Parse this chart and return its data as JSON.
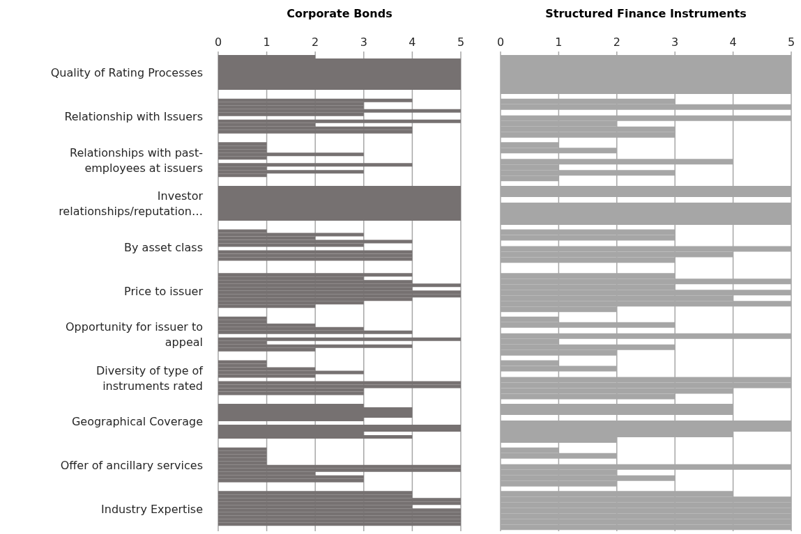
{
  "chart_data": [
    {
      "type": "bar",
      "orientation": "horizontal",
      "title": "Corporate Bonds",
      "categories": [
        "Quality of Rating Processes",
        "Relationship with Issuers",
        "Relationships with past-employees at issuers",
        "Investor relationships/reputation…",
        "By asset class",
        "Price to issuer",
        "Opportunity for issuer to appeal",
        "Diversity of type of instruments rated",
        "Geographical Coverage",
        "Offer of ancillary services",
        "Industry Expertise"
      ],
      "series": [
        {
          "color": "#767171",
          "values": [
            2,
            4,
            1,
            5,
            1,
            4,
            1,
            1,
            3,
            1,
            4
          ]
        },
        {
          "color": "#767171",
          "values": [
            5,
            3,
            1,
            5,
            3,
            3,
            1,
            1,
            4,
            1,
            4
          ]
        },
        {
          "color": "#767171",
          "values": [
            5,
            3,
            1,
            5,
            2,
            4,
            2,
            2,
            4,
            1,
            5
          ]
        },
        {
          "color": "#767171",
          "values": [
            5,
            5,
            3,
            5,
            4,
            5,
            3,
            3,
            4,
            1,
            5
          ]
        },
        {
          "color": "#767171",
          "values": [
            5,
            3,
            1,
            5,
            3,
            4,
            4,
            2,
            3,
            1,
            4
          ]
        },
        {
          "color": "#767171",
          "values": [
            5,
            0,
            0,
            5,
            0,
            5,
            0,
            0,
            0,
            5,
            5
          ]
        },
        {
          "color": "#767171",
          "values": [
            5,
            5,
            4,
            5,
            4,
            5,
            5,
            5,
            5,
            5,
            5
          ]
        },
        {
          "color": "#767171",
          "values": [
            5,
            2,
            1,
            5,
            4,
            4,
            1,
            5,
            5,
            2,
            5
          ]
        },
        {
          "color": "#767171",
          "values": [
            5,
            4,
            3,
            5,
            4,
            3,
            4,
            3,
            3,
            3,
            5
          ]
        },
        {
          "color": "#767171",
          "values": [
            5,
            4,
            1,
            5,
            0,
            2,
            2,
            3,
            4,
            3,
            5
          ]
        }
      ],
      "xlim": [
        0,
        5
      ],
      "xticks": [
        0,
        1,
        2,
        3,
        4,
        5
      ],
      "grid": "x"
    },
    {
      "type": "bar",
      "orientation": "horizontal",
      "title": "Structured Finance Instruments",
      "categories": [
        null,
        null,
        null,
        null,
        null,
        null,
        null,
        null,
        null,
        null,
        null
      ],
      "series": [
        {
          "color": "#a6a6a6",
          "values": [
            5,
            3,
            1,
            5,
            3,
            3,
            1,
            1,
            4,
            1,
            4
          ]
        },
        {
          "color": "#a6a6a6",
          "values": [
            5,
            5,
            2,
            5,
            3,
            5,
            3,
            2,
            4,
            2,
            5
          ]
        },
        {
          "color": "#a6a6a6",
          "values": [
            5,
            0,
            0,
            0,
            0,
            3,
            0,
            0,
            0,
            0,
            5
          ]
        },
        {
          "color": "#a6a6a6",
          "values": [
            5,
            5,
            4,
            5,
            5,
            5,
            5,
            5,
            5,
            5,
            5
          ]
        },
        {
          "color": "#a6a6a6",
          "values": [
            5,
            2,
            1,
            5,
            4,
            4,
            1,
            5,
            5,
            2,
            5
          ]
        },
        {
          "color": "#a6a6a6",
          "values": [
            5,
            3,
            3,
            5,
            3,
            5,
            3,
            4,
            4,
            3,
            5
          ]
        },
        {
          "color": "#a6a6a6",
          "values": [
            5,
            3,
            1,
            5,
            0,
            2,
            2,
            3,
            2,
            2,
            5
          ]
        }
      ],
      "xlim": [
        0,
        5
      ],
      "xticks": [
        0,
        1,
        2,
        3,
        4,
        5
      ],
      "grid": "x",
      "tick_labels": "x"
    }
  ]
}
